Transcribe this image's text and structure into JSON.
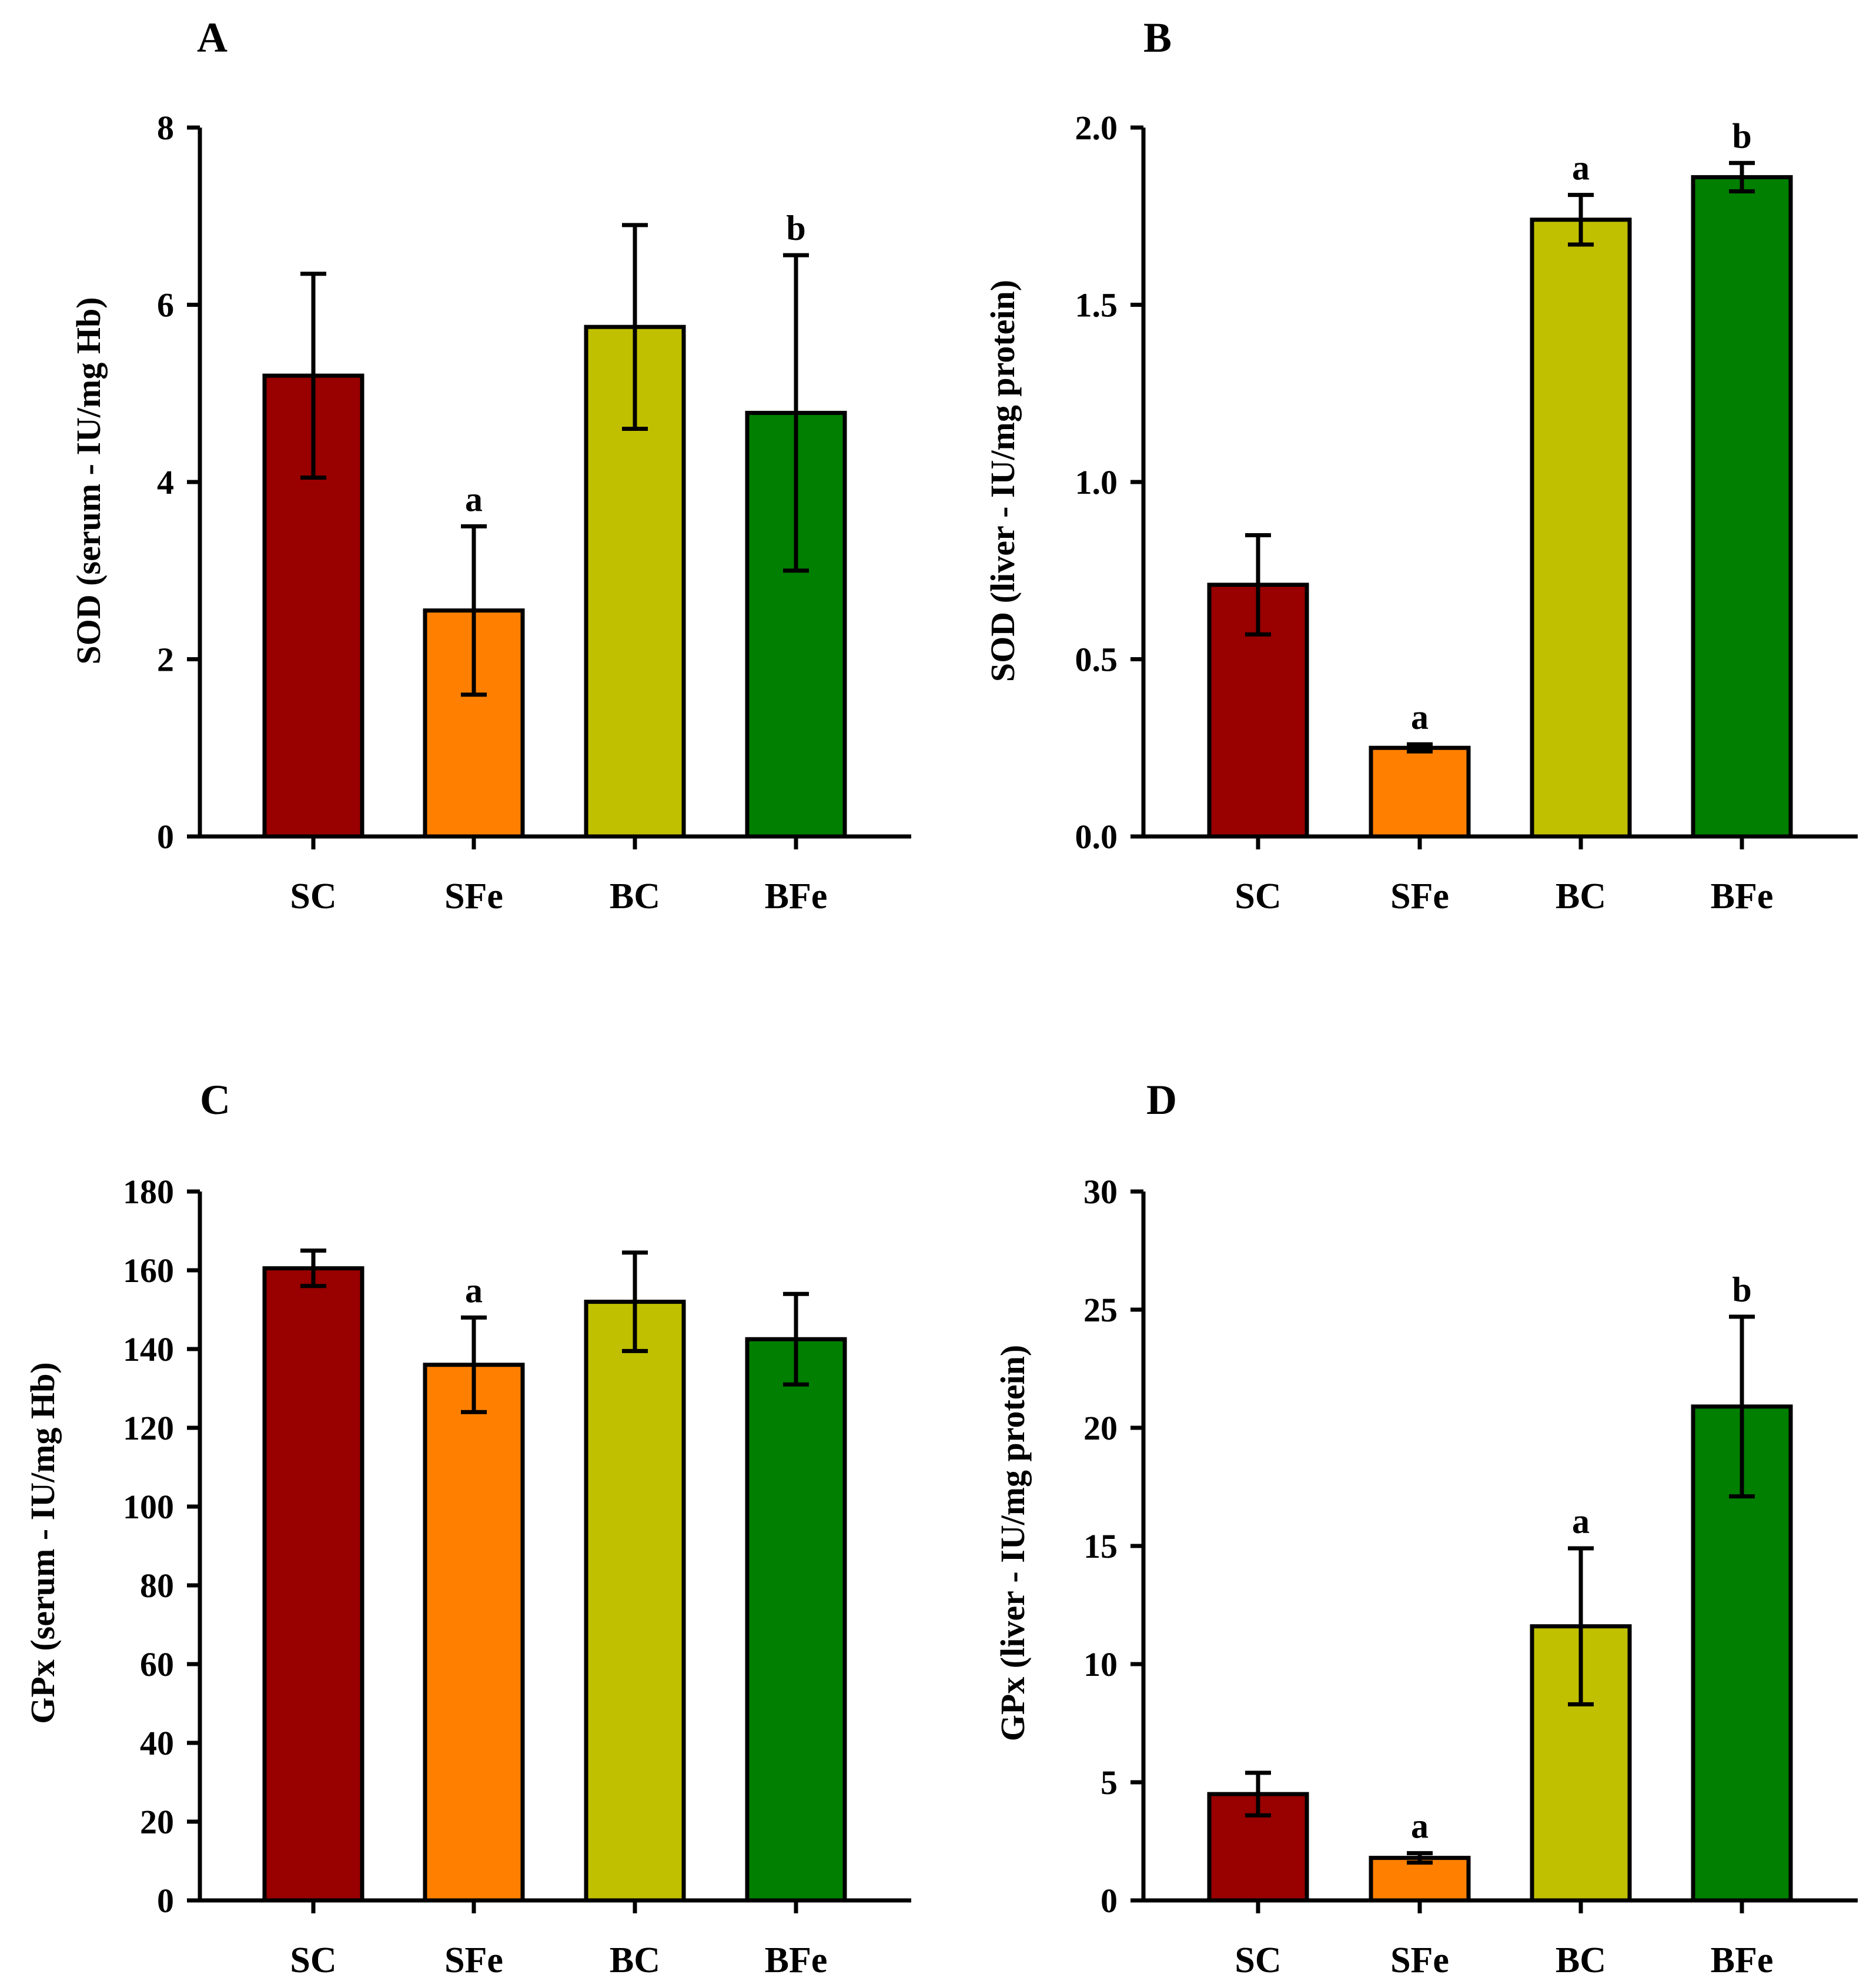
{
  "chart_data": [
    {
      "type": "bar",
      "panel": "A",
      "ylabel": "SOD (serum - IU/mg Hb)",
      "ylim": [
        0,
        8
      ],
      "yticks": [
        "0",
        "2",
        "4",
        "6",
        "8"
      ],
      "categories": [
        "SC",
        "SFe",
        "BC",
        "BFe"
      ],
      "values": [
        5.2,
        2.55,
        5.75,
        4.78
      ],
      "errors": [
        1.15,
        0.95,
        1.15,
        1.78
      ],
      "significance": [
        "",
        "a",
        "",
        "b"
      ],
      "colors": [
        "#990000",
        "#ff8000",
        "#c0c000",
        "#007f00"
      ],
      "grid": false
    },
    {
      "type": "bar",
      "panel": "B",
      "ylabel": "SOD (liver - IU/mg protein)",
      "ylim": [
        0,
        2
      ],
      "yticks": [
        "0.0",
        "0.5",
        "1.0",
        "1.5",
        "2.0"
      ],
      "categories": [
        "SC",
        "SFe",
        "BC",
        "BFe"
      ],
      "values": [
        0.71,
        0.25,
        1.74,
        1.86
      ],
      "errors": [
        0.14,
        0.01,
        0.07,
        0.04
      ],
      "significance": [
        "",
        "a",
        "a",
        "b"
      ],
      "colors": [
        "#990000",
        "#ff8000",
        "#c0c000",
        "#007f00"
      ],
      "grid": false
    },
    {
      "type": "bar",
      "panel": "C",
      "ylabel": "GPx  (serum - IU/mg Hb)",
      "ylim": [
        0,
        180
      ],
      "yticks": [
        "0",
        "20",
        "40",
        "60",
        "80",
        "100",
        "120",
        "140",
        "160",
        "180"
      ],
      "categories": [
        "SC",
        "SFe",
        "BC",
        "BFe"
      ],
      "values": [
        160.5,
        136.0,
        152.0,
        142.5
      ],
      "errors": [
        4.5,
        12.0,
        12.5,
        11.5
      ],
      "significance": [
        "",
        "a",
        "",
        ""
      ],
      "colors": [
        "#990000",
        "#ff8000",
        "#c0c000",
        "#007f00"
      ],
      "grid": false
    },
    {
      "type": "bar",
      "panel": "D",
      "ylabel": "GPx (liver - IU/mg protein)",
      "ylim": [
        0,
        30
      ],
      "yticks": [
        "0",
        "5",
        "10",
        "15",
        "20",
        "25",
        "30"
      ],
      "categories": [
        "SC",
        "SFe",
        "BC",
        "BFe"
      ],
      "values": [
        4.5,
        1.8,
        11.6,
        20.9
      ],
      "errors": [
        0.9,
        0.2,
        3.3,
        3.8
      ],
      "significance": [
        "",
        "a",
        "a",
        "b"
      ],
      "colors": [
        "#990000",
        "#ff8000",
        "#c0c000",
        "#007f00"
      ],
      "grid": false
    }
  ]
}
